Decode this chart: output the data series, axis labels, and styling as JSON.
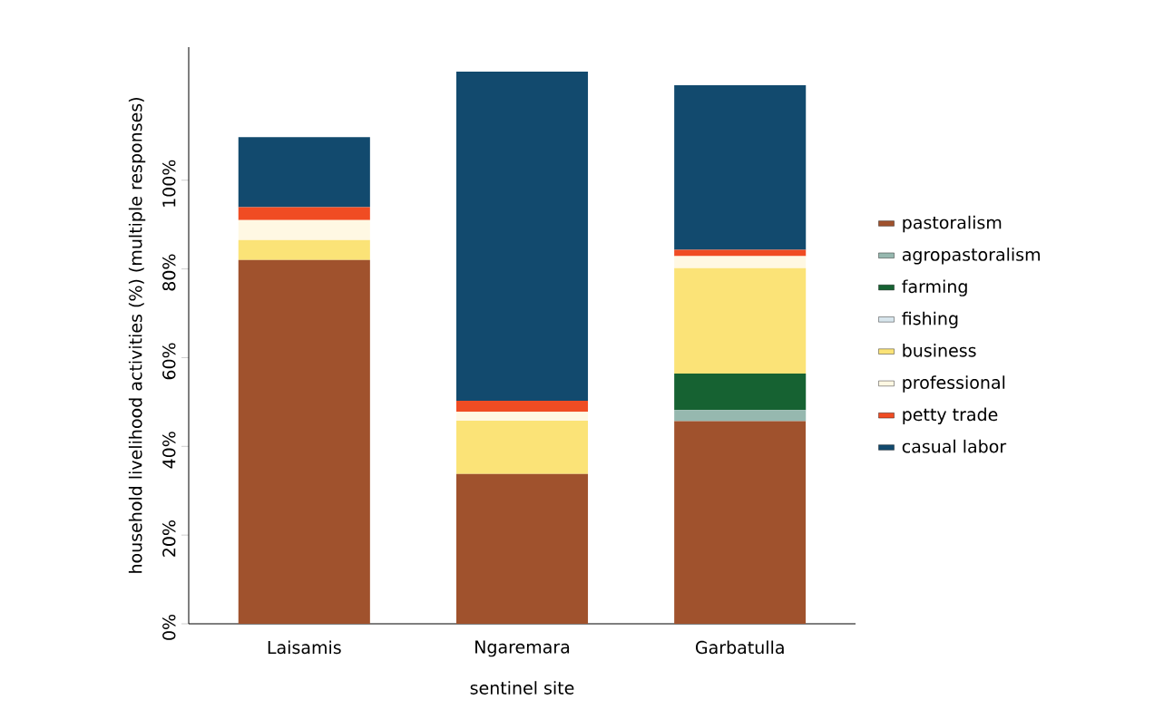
{
  "chart_data": {
    "type": "bar",
    "stacked": true,
    "xlabel": "sentinel site",
    "ylabel": "household livelihood activities (%) (multiple responses)",
    "categories": [
      "Laisamis",
      "Ngaremara",
      "Garbatulla"
    ],
    "series": [
      {
        "name": "pastoralism",
        "color": "#a0522d",
        "values": [
          82.0,
          33.8,
          45.7
        ]
      },
      {
        "name": "agropastoralism",
        "color": "#96b8af",
        "values": [
          0,
          0,
          2.5
        ]
      },
      {
        "name": "farming",
        "color": "#166232",
        "values": [
          0,
          0,
          8.2
        ]
      },
      {
        "name": "fishing",
        "color": "#d8e6ed",
        "values": [
          0,
          0,
          0
        ]
      },
      {
        "name": "business",
        "color": "#fbe377",
        "values": [
          4.5,
          12.0,
          23.8
        ]
      },
      {
        "name": "professional",
        "color": "#fff8e3",
        "values": [
          4.5,
          2.0,
          2.7
        ]
      },
      {
        "name": "petty trade",
        "color": "#f04c23",
        "values": [
          2.9,
          2.5,
          1.4
        ]
      },
      {
        "name": "casual labor",
        "color": "#124a6e",
        "values": [
          15.8,
          74.2,
          37.1
        ]
      }
    ],
    "ylim": [
      0,
      130
    ],
    "yticks": [
      {
        "value": 0,
        "label": "0%"
      },
      {
        "value": 20,
        "label": "20%"
      },
      {
        "value": 40,
        "label": "40%"
      },
      {
        "value": 60,
        "label": "60%"
      },
      {
        "value": 80,
        "label": "80%"
      },
      {
        "value": 100,
        "label": "100%"
      }
    ],
    "grid": false,
    "legend": "right"
  }
}
